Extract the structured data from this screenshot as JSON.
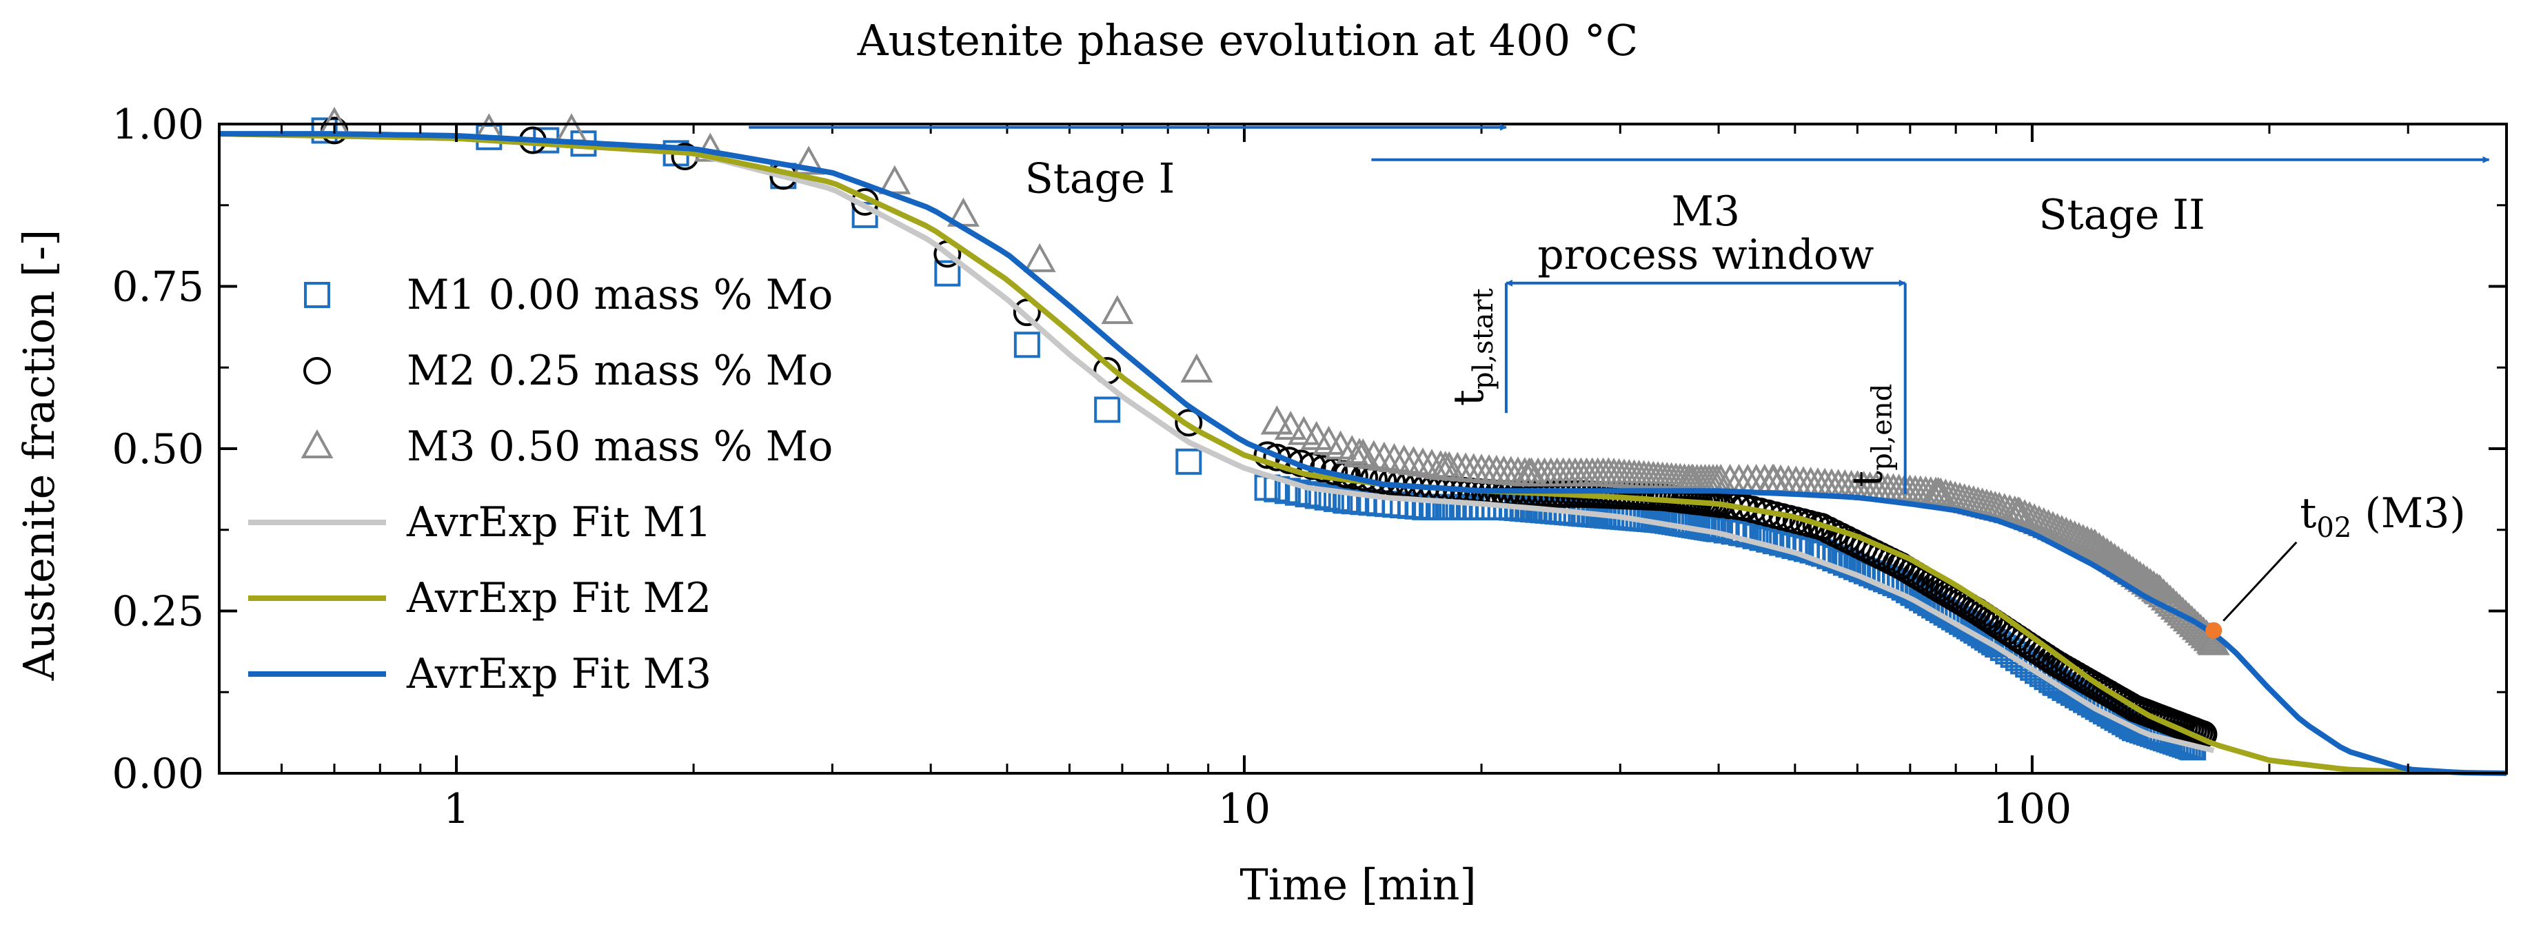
{
  "chart_data": {
    "type": "scatter",
    "title": "Austenite phase evolution  at 400 °C",
    "xlabel": "Time [min]",
    "ylabel": "Austenite fraction [-]",
    "xscale": "log",
    "xlim": [
      0.5,
      400
    ],
    "ylim": [
      0,
      1
    ],
    "x_ticks": [
      1,
      10,
      100
    ],
    "x_tick_labels": [
      "1",
      "10",
      "100"
    ],
    "y_ticks": [
      0,
      0.25,
      0.5,
      0.75,
      1.0
    ],
    "y_tick_labels": [
      "0.00",
      "0.25",
      "0.50",
      "0.75",
      "1.00"
    ],
    "grid": false,
    "legend_position": "left",
    "colors": {
      "m1": "#1f6fc0",
      "m2": "#000000",
      "m3": "#8c8c8c",
      "fit_m1": "#c8c8c8",
      "fit_m2": "#a3a51a",
      "fit_m3": "#1565c0",
      "arrow": "#1565c0",
      "marker_t02": "#ee7a2a"
    },
    "series": [
      {
        "name": "M1 0.00 mass % Mo",
        "kind": "markers",
        "marker": "square",
        "x": [
          0.68,
          1.1,
          1.3,
          1.45,
          1.9,
          2.6,
          3.3,
          4.2,
          5.3,
          6.7,
          8.5,
          10.7,
          13.5,
          17,
          21.5,
          27,
          34,
          43,
          54,
          68,
          85,
          107,
          135,
          160
        ],
        "y": [
          0.99,
          0.98,
          0.975,
          0.97,
          0.955,
          0.92,
          0.86,
          0.77,
          0.66,
          0.56,
          0.48,
          0.44,
          0.42,
          0.41,
          0.41,
          0.4,
          0.39,
          0.37,
          0.34,
          0.29,
          0.22,
          0.14,
          0.07,
          0.04
        ]
      },
      {
        "name": "M2 0.25 mass % Mo",
        "kind": "markers",
        "marker": "circle",
        "x": [
          0.7,
          1.25,
          1.95,
          2.6,
          3.3,
          4.2,
          5.3,
          6.7,
          8.5,
          10.7,
          13.5,
          17,
          21.5,
          27,
          34,
          43,
          54,
          68,
          85,
          107,
          135,
          165
        ],
        "y": [
          0.99,
          0.975,
          0.95,
          0.92,
          0.88,
          0.8,
          0.71,
          0.62,
          0.54,
          0.49,
          0.46,
          0.44,
          0.43,
          0.43,
          0.425,
          0.41,
          0.38,
          0.32,
          0.25,
          0.17,
          0.1,
          0.06
        ]
      },
      {
        "name": "M3 0.50 mass % Mo",
        "kind": "markers",
        "marker": "triangle",
        "x": [
          0.7,
          1.1,
          1.4,
          2.1,
          2.8,
          3.6,
          4.4,
          5.5,
          6.9,
          8.7,
          11,
          14,
          18,
          23,
          29,
          37,
          47,
          60,
          76,
          96,
          120,
          145,
          170
        ],
        "y": [
          1.0,
          0.99,
          0.99,
          0.96,
          0.94,
          0.91,
          0.86,
          0.79,
          0.71,
          0.62,
          0.54,
          0.49,
          0.47,
          0.46,
          0.46,
          0.45,
          0.45,
          0.44,
          0.43,
          0.4,
          0.35,
          0.28,
          0.2
        ]
      },
      {
        "name": "AvrExp Fit M1",
        "kind": "line",
        "x": [
          0.5,
          1,
          2,
          3,
          4,
          5,
          6,
          7,
          8.5,
          10,
          12,
          15,
          20,
          25,
          30,
          40,
          50,
          60,
          70,
          80,
          90,
          100,
          120,
          140,
          170
        ],
        "y": [
          0.985,
          0.978,
          0.955,
          0.9,
          0.82,
          0.73,
          0.645,
          0.58,
          0.51,
          0.47,
          0.44,
          0.425,
          0.415,
          0.405,
          0.395,
          0.37,
          0.34,
          0.305,
          0.27,
          0.23,
          0.195,
          0.16,
          0.1,
          0.06,
          0.035
        ]
      },
      {
        "name": "AvrExp Fit M2",
        "kind": "line",
        "x": [
          0.5,
          1,
          2,
          3,
          4,
          5,
          6,
          7,
          8.5,
          10,
          12,
          15,
          20,
          25,
          30,
          40,
          50,
          60,
          70,
          80,
          90,
          100,
          120,
          140,
          170,
          200,
          250,
          300
        ],
        "y": [
          0.985,
          0.978,
          0.955,
          0.91,
          0.84,
          0.76,
          0.68,
          0.61,
          0.535,
          0.49,
          0.46,
          0.445,
          0.435,
          0.43,
          0.425,
          0.415,
          0.395,
          0.365,
          0.33,
          0.29,
          0.25,
          0.21,
          0.14,
          0.09,
          0.045,
          0.02,
          0.006,
          0.002
        ]
      },
      {
        "name": "AvrExp Fit M3",
        "kind": "line",
        "x": [
          0.5,
          0.7,
          1,
          2,
          3,
          4,
          5,
          6,
          7,
          8.5,
          10,
          12,
          15,
          20,
          25,
          30,
          40,
          50,
          60,
          70,
          80,
          90,
          100,
          120,
          140,
          160,
          170,
          180,
          200,
          220,
          250,
          300,
          350,
          400
        ],
        "y": [
          0.985,
          0.985,
          0.982,
          0.962,
          0.925,
          0.87,
          0.8,
          0.72,
          0.65,
          0.565,
          0.51,
          0.47,
          0.445,
          0.435,
          0.435,
          0.435,
          0.435,
          0.43,
          0.425,
          0.415,
          0.405,
          0.39,
          0.37,
          0.32,
          0.27,
          0.235,
          0.215,
          0.19,
          0.13,
          0.08,
          0.035,
          0.006,
          0.001,
          0.0
        ]
      }
    ],
    "marker_t02": {
      "x": 170,
      "y": 0.22
    },
    "arrows": [
      {
        "label": "Stage I",
        "x_start": 2.35,
        "x_end": 21.5,
        "y": 0.995,
        "style": "single-head"
      },
      {
        "label": "Stage II",
        "x_start": 14.5,
        "x_end": 380,
        "y": 0.945,
        "style": "single-head"
      },
      {
        "label": "M3 process window",
        "x_start": 21.5,
        "x_end": 69,
        "y": 0.755,
        "style": "double-head"
      }
    ],
    "vlines": [
      {
        "x": 21.5,
        "y_from": 0.555,
        "y_to": 0.755,
        "label_main": "t",
        "label_sub": "pl,start"
      },
      {
        "x": 69,
        "y_from": 0.43,
        "y_to": 0.755,
        "label_main": "t",
        "label_sub": "pl,end"
      }
    ],
    "annotations": {
      "stage1": "Stage I",
      "stage2": "Stage II",
      "window_line1": "M3",
      "window_line2": "process window",
      "t02_main": "t",
      "t02_sub": "02",
      "t02_rest": " (M3)"
    }
  }
}
